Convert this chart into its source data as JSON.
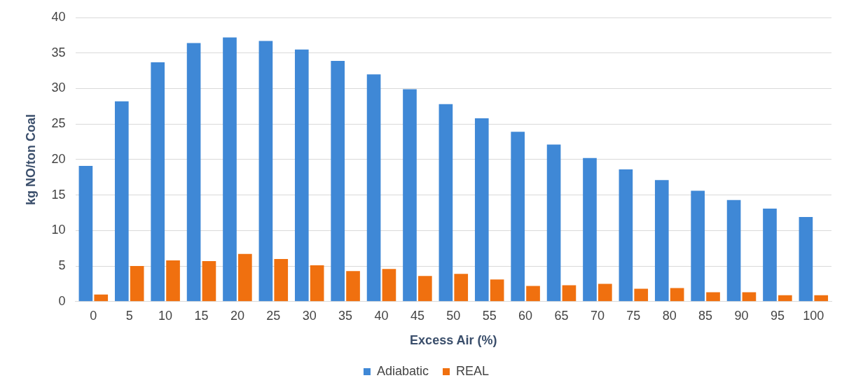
{
  "chart_data": {
    "type": "bar",
    "xlabel": "Excess Air (%)",
    "ylabel": "kg NO/ton Coal",
    "categories": [
      "0",
      "5",
      "10",
      "15",
      "20",
      "25",
      "30",
      "35",
      "40",
      "45",
      "50",
      "55",
      "60",
      "65",
      "70",
      "75",
      "80",
      "85",
      "90",
      "95",
      "100"
    ],
    "series": [
      {
        "name": "Adiabatic",
        "color": "#3f88d6",
        "values": [
          19.1,
          28.2,
          33.7,
          36.4,
          37.2,
          36.7,
          35.5,
          33.9,
          32.0,
          29.9,
          27.8,
          25.8,
          23.9,
          22.1,
          20.2,
          18.6,
          17.1,
          15.6,
          14.3,
          13.1,
          11.9
        ]
      },
      {
        "name": "REAL",
        "color": "#f0700f",
        "values": [
          1.0,
          5.0,
          5.8,
          5.7,
          6.7,
          6.0,
          5.1,
          4.3,
          4.6,
          3.6,
          3.9,
          3.1,
          2.2,
          2.3,
          2.5,
          1.8,
          1.9,
          1.3,
          1.3,
          0.9,
          0.9
        ]
      }
    ],
    "ylim": [
      0,
      40
    ],
    "yticks": [
      0,
      5,
      10,
      15,
      20,
      25,
      30,
      35,
      40
    ],
    "grid": "y",
    "legend": "bottom"
  }
}
